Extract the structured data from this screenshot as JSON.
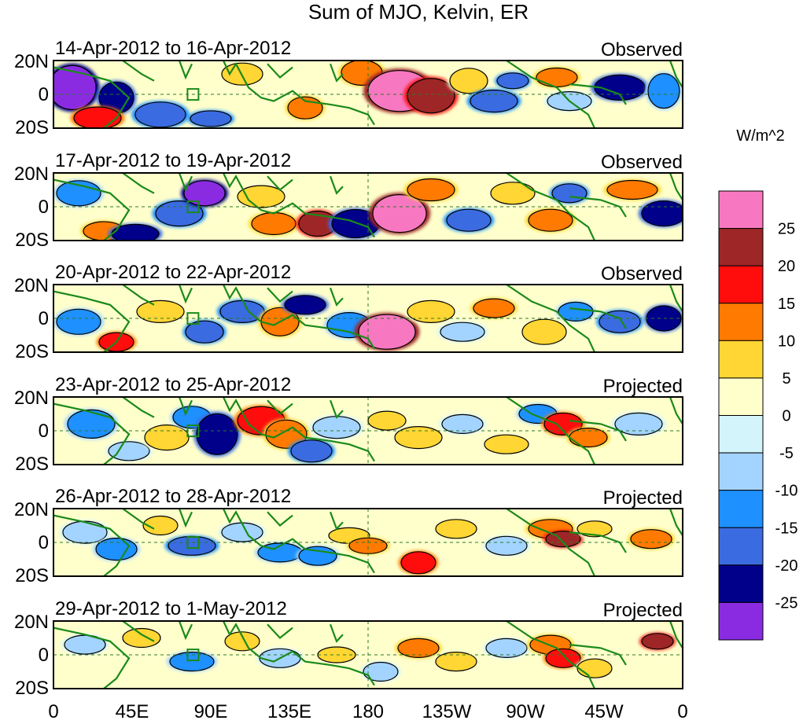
{
  "title": "Sum of MJO, Kelvin, ER",
  "panels": [
    {
      "date_range": "14-Apr-2012 to 16-Apr-2012",
      "status": "Observed"
    },
    {
      "date_range": "17-Apr-2012 to 19-Apr-2012",
      "status": "Observed"
    },
    {
      "date_range": "20-Apr-2012 to 22-Apr-2012",
      "status": "Observed"
    },
    {
      "date_range": "23-Apr-2012 to 25-Apr-2012",
      "status": "Projected"
    },
    {
      "date_range": "26-Apr-2012 to 28-Apr-2012",
      "status": "Projected"
    },
    {
      "date_range": "29-Apr-2012 to 1-May-2012",
      "status": "Projected"
    }
  ],
  "lat_ticks": [
    "20N",
    "0",
    "20S"
  ],
  "lon_ticks": [
    "0",
    "45E",
    "90E",
    "135E",
    "180",
    "135W",
    "90W",
    "45W",
    "0"
  ],
  "colorbar": {
    "units": "W/m^2",
    "labels": [
      "25",
      "20",
      "15",
      "10",
      "5",
      "0",
      "-5",
      "-10",
      "-15",
      "-20",
      "-25"
    ],
    "colors": [
      "#f778c0",
      "#9e2626",
      "#ff0d0d",
      "#ff7a00",
      "#ffd633",
      "#ffffcc",
      "#d4f4fc",
      "#a3d4ff",
      "#1e90ff",
      "#3b6be0",
      "#00008b",
      "#8a2be2"
    ]
  },
  "colors": {
    "coast": "#1a8a1a",
    "outline": "#000000"
  }
}
